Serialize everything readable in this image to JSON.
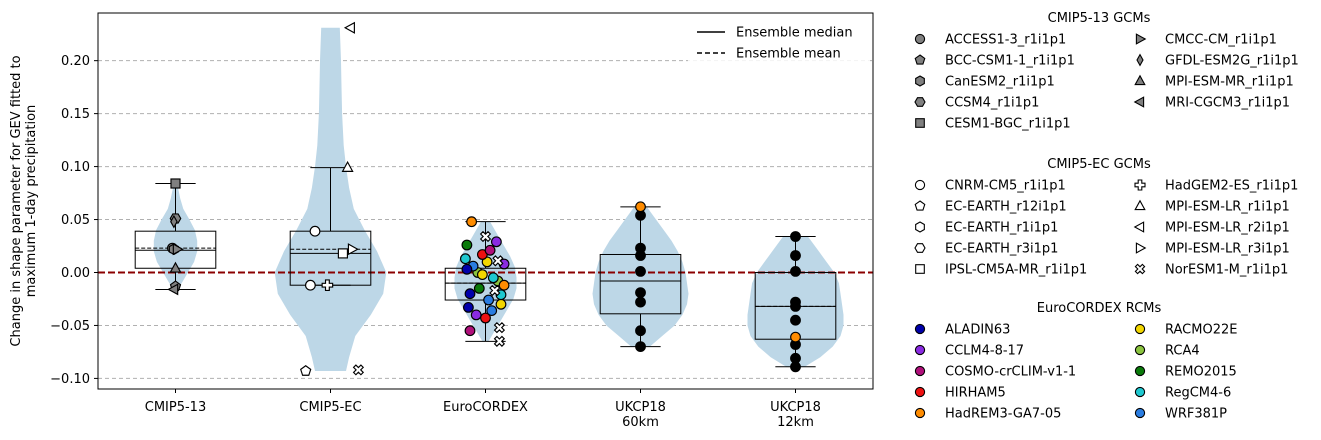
{
  "chart_data": {
    "type": "violin",
    "ylabel": "Change in shape parameter for GEV fitted to\nmaximum 1-day precipitation",
    "ylim": [
      -0.11,
      0.245
    ],
    "yticks": [
      -0.1,
      -0.05,
      0.0,
      0.05,
      0.1,
      0.15,
      0.2
    ],
    "ytick_labels": [
      "−0.10",
      "−0.05",
      "0.00",
      "0.05",
      "0.10",
      "0.15",
      "0.20"
    ],
    "grid": "y-dashed",
    "zero_line_color": "#8b0000",
    "violin_color": "#bdd7e7",
    "categories": [
      "CMIP5-13",
      "CMIP5-EC",
      "EuroCORDEX",
      "UKCP18\n60km",
      "UKCP18\n12km"
    ],
    "groups": [
      {
        "name": "CMIP5-13",
        "box": {
          "q1": 0.004,
          "median": 0.021,
          "mean": 0.023,
          "q3": 0.039,
          "wlo": -0.016,
          "whi": 0.084
        },
        "violin": [
          [
            -0.016,
            0.01
          ],
          [
            -0.01,
            0.04
          ],
          [
            0.0,
            0.08
          ],
          [
            0.01,
            0.12
          ],
          [
            0.02,
            0.14
          ],
          [
            0.03,
            0.14
          ],
          [
            0.04,
            0.125
          ],
          [
            0.05,
            0.09
          ],
          [
            0.06,
            0.05
          ],
          [
            0.07,
            0.03
          ],
          [
            0.084,
            0.01
          ]
        ],
        "points": [
          {
            "label": "ACCESS1-3_r1i1p1",
            "y": 0.023,
            "dx": -0.02
          },
          {
            "label": "BCC-CSM1-1_r1i1p1",
            "y": -0.013,
            "dx": 0.0
          },
          {
            "label": "CanESM2_r1i1p1",
            "y": 0.022,
            "dx": -0.01
          },
          {
            "label": "CCSM4_r1i1p1",
            "y": 0.051,
            "dx": 0.0
          },
          {
            "label": "CESM1-BGC_r1i1p1",
            "y": 0.084,
            "dx": 0.0
          },
          {
            "label": "CMCC-CM_r1i1p1",
            "y": 0.022,
            "dx": 0.01
          },
          {
            "label": "GFDL-ESM2G_r1i1p1",
            "y": 0.048,
            "dx": -0.01
          },
          {
            "label": "MPI-ESM-MR_r1i1p1",
            "y": 0.004,
            "dx": 0.0
          },
          {
            "label": "MRI-CGCM3_r1i1p1",
            "y": -0.016,
            "dx": -0.01
          }
        ]
      },
      {
        "name": "CMIP5-EC",
        "box": {
          "q1": -0.012,
          "median": 0.018,
          "mean": 0.022,
          "q3": 0.039,
          "wlo": -0.012,
          "whi": 0.099
        },
        "violin": [
          [
            -0.093,
            0.1
          ],
          [
            -0.08,
            0.12
          ],
          [
            -0.06,
            0.16
          ],
          [
            -0.04,
            0.26
          ],
          [
            -0.02,
            0.34
          ],
          [
            0.0,
            0.36
          ],
          [
            0.02,
            0.3
          ],
          [
            0.04,
            0.22
          ],
          [
            0.06,
            0.15
          ],
          [
            0.08,
            0.12
          ],
          [
            0.1,
            0.1
          ],
          [
            0.12,
            0.085
          ],
          [
            0.15,
            0.075
          ],
          [
            0.18,
            0.07
          ],
          [
            0.2,
            0.068
          ],
          [
            0.231,
            0.06
          ]
        ],
        "points": [
          {
            "label": "CNRM-CM5_r1i1p1",
            "y": 0.039,
            "dx": -0.1
          },
          {
            "label": "CNRM-CM5_r1i1p1",
            "y": -0.012,
            "dx": -0.13
          },
          {
            "label": "HadGEM2-ES_r1i1p1",
            "y": -0.012,
            "dx": -0.02
          },
          {
            "label": "EC-EARTH_r12i1p1",
            "y": -0.093,
            "dx": -0.16
          },
          {
            "label": "NorESM1-M_r1i1p1",
            "y": -0.092,
            "dx": 0.18
          },
          {
            "label": "IPSL-CM5A-MR_r1i1p1",
            "y": 0.018,
            "dx": 0.08
          },
          {
            "label": "MPI-ESM-LR_r3i1p1",
            "y": 0.022,
            "dx": 0.14
          },
          {
            "label": "MPI-ESM-LR_r1i1p1",
            "y": 0.099,
            "dx": 0.11
          },
          {
            "label": "MPI-ESM-LR_r2i1p1",
            "y": 0.231,
            "dx": 0.13
          }
        ]
      },
      {
        "name": "EuroCORDEX",
        "box": {
          "q1": -0.026,
          "median": -0.01,
          "mean": -0.01,
          "q3": 0.004,
          "wlo": -0.065,
          "whi": 0.048
        },
        "violin": [
          [
            -0.065,
            0.02
          ],
          [
            -0.055,
            0.06
          ],
          [
            -0.045,
            0.1
          ],
          [
            -0.035,
            0.14
          ],
          [
            -0.025,
            0.18
          ],
          [
            -0.015,
            0.2
          ],
          [
            -0.005,
            0.2
          ],
          [
            0.005,
            0.19
          ],
          [
            0.015,
            0.16
          ],
          [
            0.025,
            0.12
          ],
          [
            0.035,
            0.08
          ],
          [
            0.048,
            0.03
          ]
        ],
        "points": [
          {
            "label": "ALADIN63",
            "y": -0.02,
            "dx": -0.1
          },
          {
            "label": "CCLM4-8-17",
            "y": 0.029,
            "dx": 0.07
          },
          {
            "label": "COSMO-crCLIM-v1-1",
            "y": -0.055,
            "dx": -0.1
          },
          {
            "label": "HIRHAM5",
            "y": -0.043,
            "dx": 0.0
          },
          {
            "label": "HadREM3-GA7-05",
            "y": 0.048,
            "dx": -0.09
          },
          {
            "label": "RACMO22E",
            "y": 0.01,
            "dx": 0.01
          },
          {
            "label": "RCA4",
            "y": 0.0,
            "dx": -0.05
          },
          {
            "label": "REMO2015",
            "y": 0.026,
            "dx": -0.12
          },
          {
            "label": "RegCM4-6",
            "y": 0.013,
            "dx": -0.13
          },
          {
            "label": "WRF381P",
            "y": -0.026,
            "dx": 0.02
          },
          {
            "label": "ALADIN63",
            "y": -0.033,
            "dx": -0.11
          },
          {
            "label": "CCLM4-8-17",
            "y": -0.04,
            "dx": -0.06
          },
          {
            "label": "RACMO22E",
            "y": -0.03,
            "dx": 0.1
          },
          {
            "label": "RCA4",
            "y": -0.008,
            "dx": 0.08
          },
          {
            "label": "REMO2015",
            "y": -0.015,
            "dx": -0.04
          },
          {
            "label": "RegCM4-6",
            "y": -0.005,
            "dx": 0.05
          },
          {
            "label": "WRF381P",
            "y": 0.006,
            "dx": -0.08
          },
          {
            "label": "HIRHAM5",
            "y": 0.017,
            "dx": -0.02
          },
          {
            "label": "COSMO-crCLIM-v1-1",
            "y": 0.021,
            "dx": 0.03
          },
          {
            "label": "HadREM3-GA7-05",
            "y": -0.012,
            "dx": 0.12
          },
          {
            "label": "ALADIN63",
            "y": 0.003,
            "dx": -0.12
          },
          {
            "label": "RegCM4-6",
            "y": -0.021,
            "dx": 0.1
          },
          {
            "label": "WRF381P",
            "y": -0.036,
            "dx": 0.04
          },
          {
            "label": "RACMO22E",
            "y": -0.002,
            "dx": -0.02
          },
          {
            "label": "CCLM4-8-17",
            "y": 0.008,
            "dx": 0.12
          },
          {
            "label": "NorESM1-M_r1i1p1",
            "y": 0.034,
            "dx": 0.0
          },
          {
            "label": "NorESM1-M_r1i1p1",
            "y": 0.011,
            "dx": 0.08
          },
          {
            "label": "NorESM1-M_r1i1p1",
            "y": -0.017,
            "dx": 0.06
          },
          {
            "label": "NorESM1-M_r1i1p1",
            "y": -0.052,
            "dx": 0.09
          },
          {
            "label": "NorESM1-M_r1i1p1",
            "y": -0.065,
            "dx": 0.09
          }
        ]
      },
      {
        "name": "UKCP18 60km",
        "box": {
          "q1": -0.039,
          "median": -0.008,
          "mean": -0.008,
          "q3": 0.017,
          "wlo": -0.07,
          "whi": 0.062
        },
        "violin": [
          [
            -0.07,
            0.06
          ],
          [
            -0.06,
            0.14
          ],
          [
            -0.05,
            0.22
          ],
          [
            -0.04,
            0.27
          ],
          [
            -0.03,
            0.3
          ],
          [
            -0.02,
            0.31
          ],
          [
            -0.01,
            0.3
          ],
          [
            0.0,
            0.29
          ],
          [
            0.01,
            0.27
          ],
          [
            0.02,
            0.24
          ],
          [
            0.03,
            0.2
          ],
          [
            0.04,
            0.15
          ],
          [
            0.05,
            0.1
          ],
          [
            0.062,
            0.04
          ]
        ],
        "points": [
          {
            "label": "UKCP18",
            "y": 0.054,
            "dx": 0.0,
            "color": "#000000"
          },
          {
            "label": "UKCP18",
            "y": 0.023,
            "dx": 0.0,
            "color": "#000000"
          },
          {
            "label": "UKCP18",
            "y": 0.016,
            "dx": 0.0,
            "color": "#000000"
          },
          {
            "label": "UKCP18",
            "y": 0.001,
            "dx": 0.0,
            "color": "#000000"
          },
          {
            "label": "UKCP18",
            "y": -0.019,
            "dx": 0.0,
            "color": "#000000"
          },
          {
            "label": "UKCP18",
            "y": -0.028,
            "dx": 0.0,
            "color": "#000000"
          },
          {
            "label": "UKCP18",
            "y": -0.055,
            "dx": 0.0,
            "color": "#000000"
          },
          {
            "label": "UKCP18",
            "y": -0.07,
            "dx": 0.0,
            "color": "#000000"
          },
          {
            "label": "HadREM3-GA7-05",
            "y": 0.062,
            "dx": 0.0
          }
        ]
      },
      {
        "name": "UKCP18 12km",
        "box": {
          "q1": -0.063,
          "median": -0.032,
          "mean": -0.032,
          "q3": 0.0,
          "wlo": -0.089,
          "whi": 0.034
        },
        "violin": [
          [
            -0.089,
            0.06
          ],
          [
            -0.08,
            0.16
          ],
          [
            -0.07,
            0.24
          ],
          [
            -0.06,
            0.29
          ],
          [
            -0.05,
            0.31
          ],
          [
            -0.04,
            0.31
          ],
          [
            -0.03,
            0.3
          ],
          [
            -0.02,
            0.29
          ],
          [
            -0.01,
            0.28
          ],
          [
            0.0,
            0.25
          ],
          [
            0.01,
            0.2
          ],
          [
            0.02,
            0.15
          ],
          [
            0.034,
            0.08
          ]
        ],
        "points": [
          {
            "label": "UKCP18",
            "y": 0.034,
            "dx": 0.0,
            "color": "#000000"
          },
          {
            "label": "UKCP18",
            "y": 0.016,
            "dx": 0.0,
            "color": "#000000"
          },
          {
            "label": "UKCP18",
            "y": 0.001,
            "dx": 0.0,
            "color": "#000000"
          },
          {
            "label": "UKCP18",
            "y": -0.028,
            "dx": 0.0,
            "color": "#000000"
          },
          {
            "label": "UKCP18",
            "y": -0.032,
            "dx": 0.0,
            "color": "#000000"
          },
          {
            "label": "UKCP18",
            "y": -0.045,
            "dx": 0.0,
            "color": "#000000"
          },
          {
            "label": "UKCP18",
            "y": -0.068,
            "dx": 0.0,
            "color": "#000000"
          },
          {
            "label": "UKCP18",
            "y": -0.081,
            "dx": 0.0,
            "color": "#000000"
          },
          {
            "label": "UKCP18",
            "y": -0.089,
            "dx": 0.0,
            "color": "#000000"
          },
          {
            "label": "HadREM3-GA7-05",
            "y": -0.061,
            "dx": 0.0
          }
        ]
      }
    ],
    "line_legend": [
      {
        "label": "Ensemble median",
        "style": "solid"
      },
      {
        "label": "Ensemble mean",
        "style": "dashed"
      }
    ],
    "legends": [
      {
        "title": "CMIP5-13 GCMs",
        "columns": [
          [
            {
              "label": "ACCESS1-3_r1i1p1",
              "marker": "circle",
              "fill": "#808080"
            },
            {
              "label": "BCC-CSM1-1_r1i1p1",
              "marker": "pentagon",
              "fill": "#808080"
            },
            {
              "label": "CanESM2_r1i1p1",
              "marker": "hexagon",
              "fill": "#808080"
            },
            {
              "label": "CCSM4_r1i1p1",
              "marker": "hexagon2",
              "fill": "#808080"
            },
            {
              "label": "CESM1-BGC_r1i1p1",
              "marker": "square",
              "fill": "#808080"
            }
          ],
          [
            {
              "label": "CMCC-CM_r1i1p1",
              "marker": "tri-right",
              "fill": "#808080"
            },
            {
              "label": "GFDL-ESM2G_r1i1p1",
              "marker": "thin-diamond",
              "fill": "#808080"
            },
            {
              "label": "MPI-ESM-MR_r1i1p1",
              "marker": "tri-up",
              "fill": "#808080"
            },
            {
              "label": "MRI-CGCM3_r1i1p1",
              "marker": "tri-left",
              "fill": "#808080"
            }
          ]
        ]
      },
      {
        "title": "CMIP5-EC GCMs",
        "columns": [
          [
            {
              "label": "CNRM-CM5_r1i1p1",
              "marker": "circle",
              "fill": "#ffffff"
            },
            {
              "label": "EC-EARTH_r12i1p1",
              "marker": "pentagon",
              "fill": "#ffffff"
            },
            {
              "label": "EC-EARTH_r1i1p1",
              "marker": "hexagon",
              "fill": "#ffffff"
            },
            {
              "label": "EC-EARTH_r3i1p1",
              "marker": "hexagon2",
              "fill": "#ffffff"
            },
            {
              "label": "IPSL-CM5A-MR_r1i1p1",
              "marker": "square",
              "fill": "#ffffff"
            }
          ],
          [
            {
              "label": "HadGEM2-ES_r1i1p1",
              "marker": "plus",
              "fill": "#ffffff"
            },
            {
              "label": "MPI-ESM-LR_r1i1p1",
              "marker": "tri-up",
              "fill": "#ffffff"
            },
            {
              "label": "MPI-ESM-LR_r2i1p1",
              "marker": "tri-left",
              "fill": "#ffffff"
            },
            {
              "label": "MPI-ESM-LR_r3i1p1",
              "marker": "tri-right",
              "fill": "#ffffff"
            },
            {
              "label": "NorESM1-M_r1i1p1",
              "marker": "x",
              "fill": "#ffffff"
            }
          ]
        ]
      },
      {
        "title": "EuroCORDEX RCMs",
        "columns": [
          [
            {
              "label": "ALADIN63",
              "marker": "circle",
              "fill": "#0000aa"
            },
            {
              "label": "CCLM4-8-17",
              "marker": "circle",
              "fill": "#8a2be2"
            },
            {
              "label": "COSMO-crCLIM-v1-1",
              "marker": "circle",
              "fill": "#b0107a"
            },
            {
              "label": "HIRHAM5",
              "marker": "circle",
              "fill": "#ee1111"
            },
            {
              "label": "HadREM3-GA7-05",
              "marker": "circle",
              "fill": "#ff8c00"
            }
          ],
          [
            {
              "label": "RACMO22E",
              "marker": "circle",
              "fill": "#f2d600"
            },
            {
              "label": "RCA4",
              "marker": "circle",
              "fill": "#8bc43f"
            },
            {
              "label": "REMO2015",
              "marker": "circle",
              "fill": "#0a7a0a"
            },
            {
              "label": "RegCM4-6",
              "marker": "circle",
              "fill": "#1ec8d0"
            },
            {
              "label": "WRF381P",
              "marker": "circle",
              "fill": "#2a7de1"
            }
          ]
        ]
      }
    ]
  }
}
